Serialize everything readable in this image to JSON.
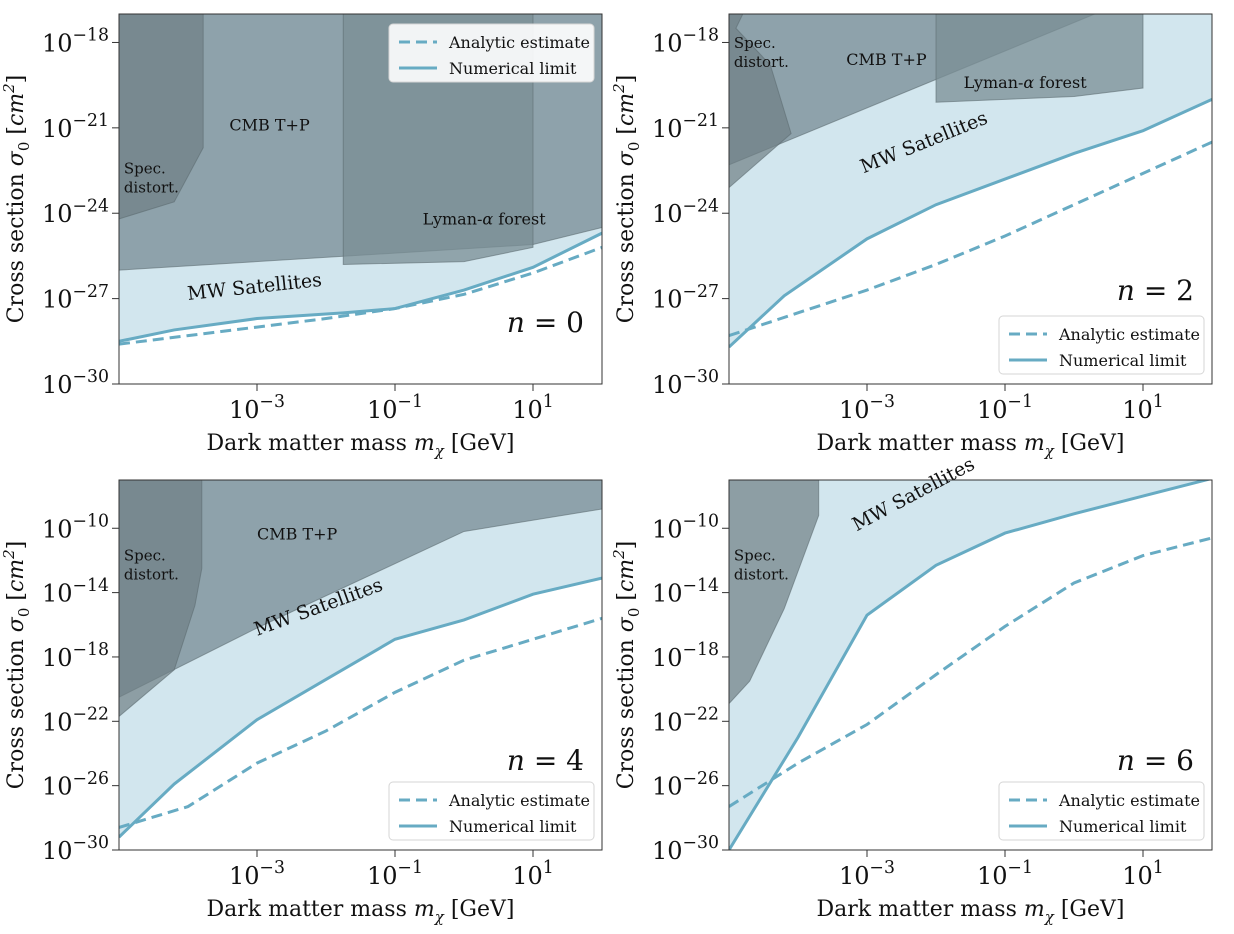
{
  "figure": {
    "colors": {
      "satellite_fill": "#d2e6ee",
      "limit_line": "#67abc3",
      "cmb_fill": "#8a9ea6",
      "lyman_fill": "#7a8d94",
      "spec_fill": "#6f7f85",
      "axis": "#333333"
    },
    "legend_labels": {
      "analytic": "Analytic estimate",
      "numerical": "Numerical limit"
    }
  },
  "chart_data": [
    {
      "id": "n0",
      "type": "area",
      "xlabel": "Dark matter mass m_χ [GeV]",
      "ylabel": "Cross section σ_0 [cm^2]",
      "xscale": "log",
      "yscale": "log",
      "xlim_log10": [
        -5,
        2
      ],
      "ylim_log10": [
        -30,
        -17
      ],
      "x_tick_labels": [
        "10^-3",
        "10^-1",
        "10^1"
      ],
      "y_tick_labels": [
        "10^-30",
        "10^-27",
        "10^-24",
        "10^-21",
        "10^-18"
      ],
      "annotation": "n = 0",
      "legend_position": "upper right",
      "numerical_limit": [
        [
          -5,
          -28.5
        ],
        [
          -4.2,
          -28.1
        ],
        [
          -3,
          -27.7
        ],
        [
          -1.75,
          -27.5
        ],
        [
          -1,
          -27.35
        ],
        [
          0,
          -26.7
        ],
        [
          1,
          -25.9
        ],
        [
          2,
          -24.7
        ]
      ],
      "analytic_estimate": [
        [
          -5,
          -28.6
        ],
        [
          -4,
          -28.3
        ],
        [
          -3,
          -28
        ],
        [
          -2,
          -27.7
        ],
        [
          -1,
          -27.35
        ],
        [
          0,
          -26.85
        ],
        [
          1,
          -26.1
        ],
        [
          2,
          -25.2
        ]
      ],
      "regions": [
        {
          "label": "CMB T+P",
          "poly": [
            [
              -5,
              -17
            ],
            [
              2,
              -17
            ],
            [
              2,
              -24.5
            ],
            [
              1,
              -25.1
            ],
            [
              -5,
              -26
            ]
          ]
        },
        {
          "label": "Lyman-α forest",
          "poly": [
            [
              -1.75,
              -17
            ],
            [
              1,
              -17
            ],
            [
              1,
              -25.2
            ],
            [
              0,
              -25.7
            ],
            [
              -1.75,
              -25.8
            ]
          ]
        },
        {
          "label": "Spec. distort.",
          "poly": [
            [
              -5,
              -17
            ],
            [
              -3.78,
              -17
            ],
            [
              -3.78,
              -21.7
            ],
            [
              -4.2,
              -23.6
            ],
            [
              -5,
              -24.2
            ]
          ]
        }
      ],
      "region_labels": [
        {
          "text": "CMB T+P",
          "at": [
            -3.4,
            -21.1
          ]
        },
        {
          "text": "Lyman-α forest",
          "at": [
            -0.6,
            -24.4
          ]
        },
        {
          "text": "Spec. distort.",
          "at": [
            -4.93,
            -22.6
          ]
        }
      ],
      "satellite_label": "MW Satellites"
    },
    {
      "id": "n2",
      "type": "area",
      "xlabel": "Dark matter mass m_χ [GeV]",
      "ylabel": "Cross section σ_0 [cm^2]",
      "xscale": "log",
      "yscale": "log",
      "xlim_log10": [
        -5,
        2
      ],
      "ylim_log10": [
        -30,
        -17
      ],
      "x_tick_labels": [
        "10^-3",
        "10^-1",
        "10^1"
      ],
      "y_tick_labels": [
        "10^-30",
        "10^-27",
        "10^-24",
        "10^-21",
        "10^-18"
      ],
      "annotation": "n = 2",
      "legend_position": "lower right",
      "numerical_limit": [
        [
          -5,
          -28.7
        ],
        [
          -4.2,
          -26.9
        ],
        [
          -3,
          -24.9
        ],
        [
          -2,
          -23.7
        ],
        [
          -1,
          -22.8
        ],
        [
          0,
          -21.9
        ],
        [
          1,
          -21.1
        ],
        [
          2,
          -20
        ]
      ],
      "analytic_estimate": [
        [
          -5,
          -28.3
        ],
        [
          -4,
          -27.5
        ],
        [
          -3,
          -26.7
        ],
        [
          -2,
          -25.8
        ],
        [
          -1,
          -24.8
        ],
        [
          0,
          -23.7
        ],
        [
          1,
          -22.6
        ],
        [
          2,
          -21.5
        ]
      ],
      "regions": [
        {
          "label": "CMB T+P",
          "poly": [
            [
              -5,
              -17
            ],
            [
              0.3,
              -17
            ],
            [
              -5,
              -22.3
            ]
          ]
        },
        {
          "label": "Lyman-α forest",
          "poly": [
            [
              -2,
              -17
            ],
            [
              1,
              -17
            ],
            [
              1,
              -19.6
            ],
            [
              0,
              -19.9
            ],
            [
              -2,
              -20.1
            ]
          ]
        },
        {
          "label": "Spec. distort.",
          "poly": [
            [
              -5,
              -17
            ],
            [
              -4.8,
              -17
            ],
            [
              -4.9,
              -17.5
            ],
            [
              -4.4,
              -18.8
            ],
            [
              -4.1,
              -21.2
            ],
            [
              -5,
              -23.1
            ]
          ]
        }
      ],
      "region_labels": [
        {
          "text": "CMB T+P",
          "at": [
            -3.3,
            -18.8
          ]
        },
        {
          "text": "Lyman-α forest",
          "at": [
            -1.6,
            -19.6
          ]
        },
        {
          "text": "Spec. distort.",
          "at": [
            -4.93,
            -18.2
          ]
        }
      ],
      "satellite_label": "MW Satellites"
    },
    {
      "id": "n4",
      "type": "area",
      "xlabel": "Dark matter mass m_χ [GeV]",
      "ylabel": "Cross section σ_0 [cm^2]",
      "xscale": "log",
      "yscale": "log",
      "xlim_log10": [
        -5,
        2
      ],
      "ylim_log10": [
        -30,
        -7
      ],
      "x_tick_labels": [
        "10^-3",
        "10^-1",
        "10^1"
      ],
      "y_tick_labels": [
        "10^-30",
        "10^-26",
        "10^-22",
        "10^-18",
        "10^-14",
        "10^-10"
      ],
      "annotation": "n = 4",
      "legend_position": "lower right",
      "numerical_limit": [
        [
          -5,
          -29.2
        ],
        [
          -4.2,
          -25.9
        ],
        [
          -3,
          -21.9
        ],
        [
          -2,
          -19.4
        ],
        [
          -1,
          -16.9
        ],
        [
          0,
          -15.7
        ],
        [
          1,
          -14.1
        ],
        [
          2,
          -13.1
        ]
      ],
      "analytic_estimate": [
        [
          -5,
          -28.6
        ],
        [
          -4,
          -27.3
        ],
        [
          -3,
          -24.6
        ],
        [
          -2,
          -22.6
        ],
        [
          -1,
          -20.2
        ],
        [
          0,
          -18.2
        ],
        [
          1,
          -16.9
        ],
        [
          2,
          -15.6
        ]
      ],
      "regions": [
        {
          "label": "CMB T+P",
          "poly": [
            [
              -5,
              -7
            ],
            [
              2,
              -7
            ],
            [
              2,
              -8.8
            ],
            [
              0,
              -10.2
            ],
            [
              -3,
              -16.2
            ],
            [
              -5,
              -20.5
            ]
          ]
        },
        {
          "label": "Spec. distort.",
          "poly": [
            [
              -5,
              -7
            ],
            [
              -3.8,
              -7
            ],
            [
              -3.8,
              -12.5
            ],
            [
              -3.9,
              -14.8
            ],
            [
              -4.2,
              -18.8
            ],
            [
              -5,
              -21.7
            ]
          ]
        }
      ],
      "region_labels": [
        {
          "text": "CMB T+P",
          "at": [
            -3,
            -10.7
          ]
        },
        {
          "text": "Spec. distort.",
          "at": [
            -4.93,
            -12
          ]
        }
      ],
      "satellite_label": "MW Satellites"
    },
    {
      "id": "n6",
      "type": "area",
      "xlabel": "Dark matter mass m_χ [GeV]",
      "ylabel": "Cross section σ_0 [cm^2]",
      "xscale": "log",
      "yscale": "log",
      "xlim_log10": [
        -5,
        2
      ],
      "ylim_log10": [
        -30,
        -7
      ],
      "x_tick_labels": [
        "10^-3",
        "10^-1",
        "10^1"
      ],
      "y_tick_labels": [
        "10^-30",
        "10^-26",
        "10^-22",
        "10^-18",
        "10^-14",
        "10^-10"
      ],
      "annotation": "n = 6",
      "legend_position": "lower right",
      "numerical_limit": [
        [
          -5,
          -30
        ],
        [
          -4,
          -23
        ],
        [
          -3,
          -15.4
        ],
        [
          -2,
          -12.3
        ],
        [
          -1,
          -10.3
        ],
        [
          0,
          -9.1
        ],
        [
          1,
          -8
        ],
        [
          2,
          -6.9
        ]
      ],
      "analytic_estimate": [
        [
          -5,
          -27.3
        ],
        [
          -4,
          -24.6
        ],
        [
          -3,
          -22.2
        ],
        [
          -2,
          -19.1
        ],
        [
          -1,
          -16.1
        ],
        [
          0,
          -13.4
        ],
        [
          1,
          -11.7
        ],
        [
          2,
          -10.6
        ]
      ],
      "regions": [
        {
          "label": "Spec. distort.",
          "poly": [
            [
              -5,
              -7
            ],
            [
              -3.7,
              -7
            ],
            [
              -3.7,
              -9.2
            ],
            [
              -4.2,
              -15
            ],
            [
              -4.7,
              -19.5
            ],
            [
              -5,
              -20.9
            ]
          ]
        }
      ],
      "region_labels": [
        {
          "text": "Spec. distort.",
          "at": [
            -4.93,
            -12
          ]
        }
      ],
      "satellite_label": "MW Satellites"
    }
  ]
}
